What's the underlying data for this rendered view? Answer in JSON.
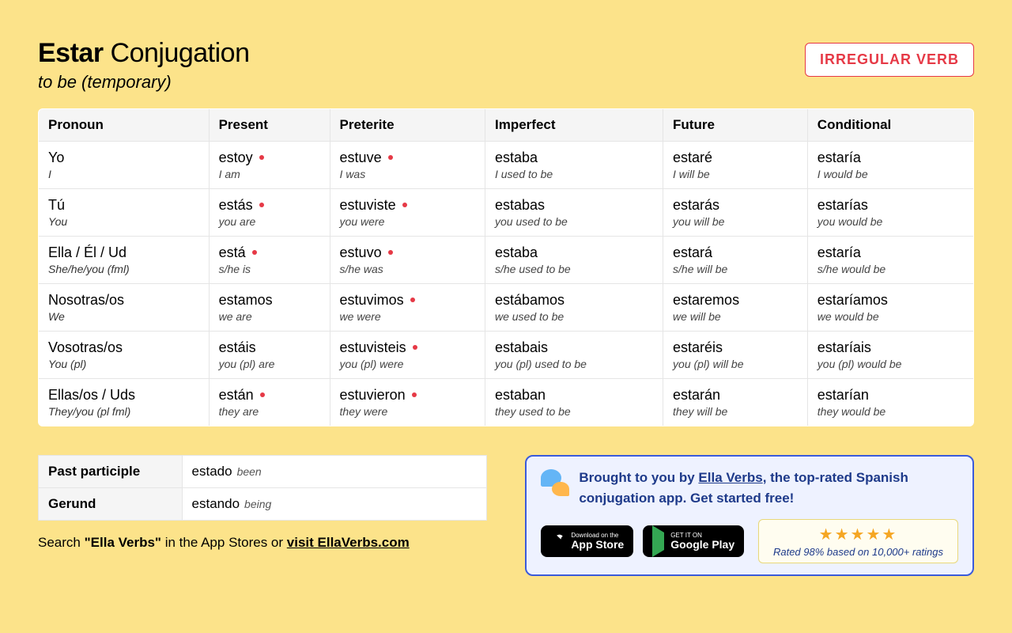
{
  "header": {
    "verb": "Estar",
    "suffix": "Conjugation",
    "subtitle": "to be (temporary)",
    "badge": "IRREGULAR VERB"
  },
  "columns": [
    "Pronoun",
    "Present",
    "Preterite",
    "Imperfect",
    "Future",
    "Conditional"
  ],
  "rows": [
    {
      "pronoun": "Yo",
      "pronoun_gloss": "I",
      "present": {
        "w": "estoy",
        "g": "I am",
        "irr": true
      },
      "preterite": {
        "w": "estuve",
        "g": "I was",
        "irr": true
      },
      "imperfect": {
        "w": "estaba",
        "g": "I used to be",
        "irr": false
      },
      "future": {
        "w": "estaré",
        "g": "I will be",
        "irr": false
      },
      "conditional": {
        "w": "estaría",
        "g": "I would be",
        "irr": false
      }
    },
    {
      "pronoun": "Tú",
      "pronoun_gloss": "You",
      "present": {
        "w": "estás",
        "g": "you are",
        "irr": true
      },
      "preterite": {
        "w": "estuviste",
        "g": "you were",
        "irr": true
      },
      "imperfect": {
        "w": "estabas",
        "g": "you used to be",
        "irr": false
      },
      "future": {
        "w": "estarás",
        "g": "you will be",
        "irr": false
      },
      "conditional": {
        "w": "estarías",
        "g": "you would be",
        "irr": false
      }
    },
    {
      "pronoun": "Ella / Él / Ud",
      "pronoun_gloss": "She/he/you (fml)",
      "present": {
        "w": "está",
        "g": "s/he is",
        "irr": true
      },
      "preterite": {
        "w": "estuvo",
        "g": "s/he was",
        "irr": true
      },
      "imperfect": {
        "w": "estaba",
        "g": "s/he used to be",
        "irr": false
      },
      "future": {
        "w": "estará",
        "g": "s/he will be",
        "irr": false
      },
      "conditional": {
        "w": "estaría",
        "g": "s/he would be",
        "irr": false
      }
    },
    {
      "pronoun": "Nosotras/os",
      "pronoun_gloss": "We",
      "present": {
        "w": "estamos",
        "g": "we are",
        "irr": false
      },
      "preterite": {
        "w": "estuvimos",
        "g": "we were",
        "irr": true
      },
      "imperfect": {
        "w": "estábamos",
        "g": "we used to be",
        "irr": false
      },
      "future": {
        "w": "estaremos",
        "g": "we will be",
        "irr": false
      },
      "conditional": {
        "w": "estaríamos",
        "g": "we would be",
        "irr": false
      }
    },
    {
      "pronoun": "Vosotras/os",
      "pronoun_gloss": "You (pl)",
      "present": {
        "w": "estáis",
        "g": "you (pl) are",
        "irr": false
      },
      "preterite": {
        "w": "estuvisteis",
        "g": "you (pl) were",
        "irr": true
      },
      "imperfect": {
        "w": "estabais",
        "g": "you (pl) used to be",
        "irr": false
      },
      "future": {
        "w": "estaréis",
        "g": "you (pl) will be",
        "irr": false
      },
      "conditional": {
        "w": "estaríais",
        "g": "you (pl) would be",
        "irr": false
      }
    },
    {
      "pronoun": "Ellas/os / Uds",
      "pronoun_gloss": "They/you (pl fml)",
      "present": {
        "w": "están",
        "g": "they are",
        "irr": true
      },
      "preterite": {
        "w": "estuvieron",
        "g": "they were",
        "irr": true
      },
      "imperfect": {
        "w": "estaban",
        "g": "they used to be",
        "irr": false
      },
      "future": {
        "w": "estarán",
        "g": "they will be",
        "irr": false
      },
      "conditional": {
        "w": "estarían",
        "g": "they would be",
        "irr": false
      }
    }
  ],
  "participles": [
    {
      "label": "Past participle",
      "word": "estado",
      "gloss": "been"
    },
    {
      "label": "Gerund",
      "word": "estando",
      "gloss": "being"
    }
  ],
  "search_note": {
    "prefix": "Search ",
    "quoted": "\"Ella Verbs\"",
    "mid": " in the App Stores or ",
    "link": "visit EllaVerbs.com"
  },
  "promo": {
    "text_prefix": "Brought to you by ",
    "brand": "Ella Verbs",
    "text_suffix": ", the top-rated Spanish conjugation app. Get started free!",
    "appstore": {
      "small": "Download on the",
      "big": "App Store"
    },
    "gplay": {
      "small": "GET IT ON",
      "big": "Google Play"
    },
    "stars": "★★★★★",
    "rating_text": "Rated 98% based on 10,000+ ratings"
  },
  "colors": {
    "page_bg": "#fce38a",
    "accent_red": "#e63946",
    "promo_bg": "#eef2ff",
    "promo_border": "#3b5bdb",
    "promo_text": "#1e3a8a",
    "star_color": "#f5a623"
  }
}
